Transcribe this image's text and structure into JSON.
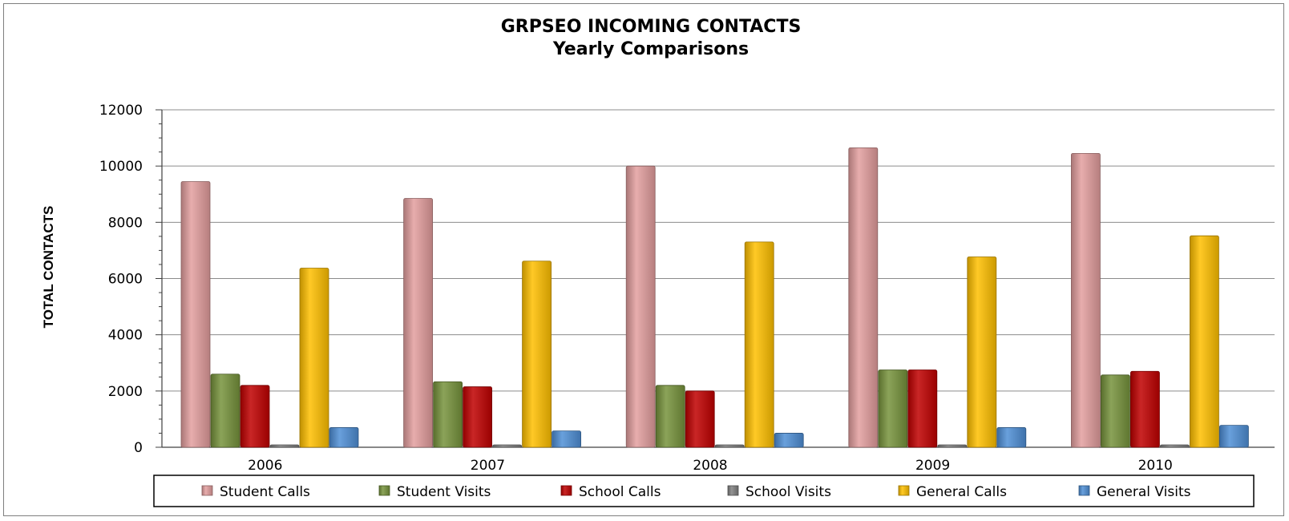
{
  "chart_data": {
    "type": "bar",
    "title": "GRPSEO INCOMING CONTACTS",
    "subtitle": "Yearly Comparisons",
    "xlabel": "",
    "ylabel": "TOTAL CONTACTS",
    "ylim": [
      0,
      12000
    ],
    "yticks": [
      0,
      2000,
      4000,
      6000,
      8000,
      10000,
      12000
    ],
    "grid": true,
    "legend_position": "bottom",
    "categories": [
      "2006",
      "2007",
      "2008",
      "2009",
      "2010"
    ],
    "series": [
      {
        "name": "Student Calls",
        "color": "#e39e9e",
        "values": [
          9450,
          8850,
          10000,
          10650,
          10450
        ]
      },
      {
        "name": "Student Visits",
        "color": "#77933c",
        "values": [
          2600,
          2330,
          2200,
          2750,
          2570
        ]
      },
      {
        "name": "School Calls",
        "color": "#c00000",
        "values": [
          2200,
          2150,
          2000,
          2750,
          2700
        ]
      },
      {
        "name": "School Visits",
        "color": "#808080",
        "values": [
          60,
          60,
          60,
          60,
          60
        ]
      },
      {
        "name": "General Calls",
        "color": "#ffc000",
        "values": [
          6370,
          6620,
          7300,
          6770,
          7520
        ]
      },
      {
        "name": "General Visits",
        "color": "#4f8fd6",
        "values": [
          700,
          580,
          500,
          700,
          780
        ]
      }
    ]
  }
}
